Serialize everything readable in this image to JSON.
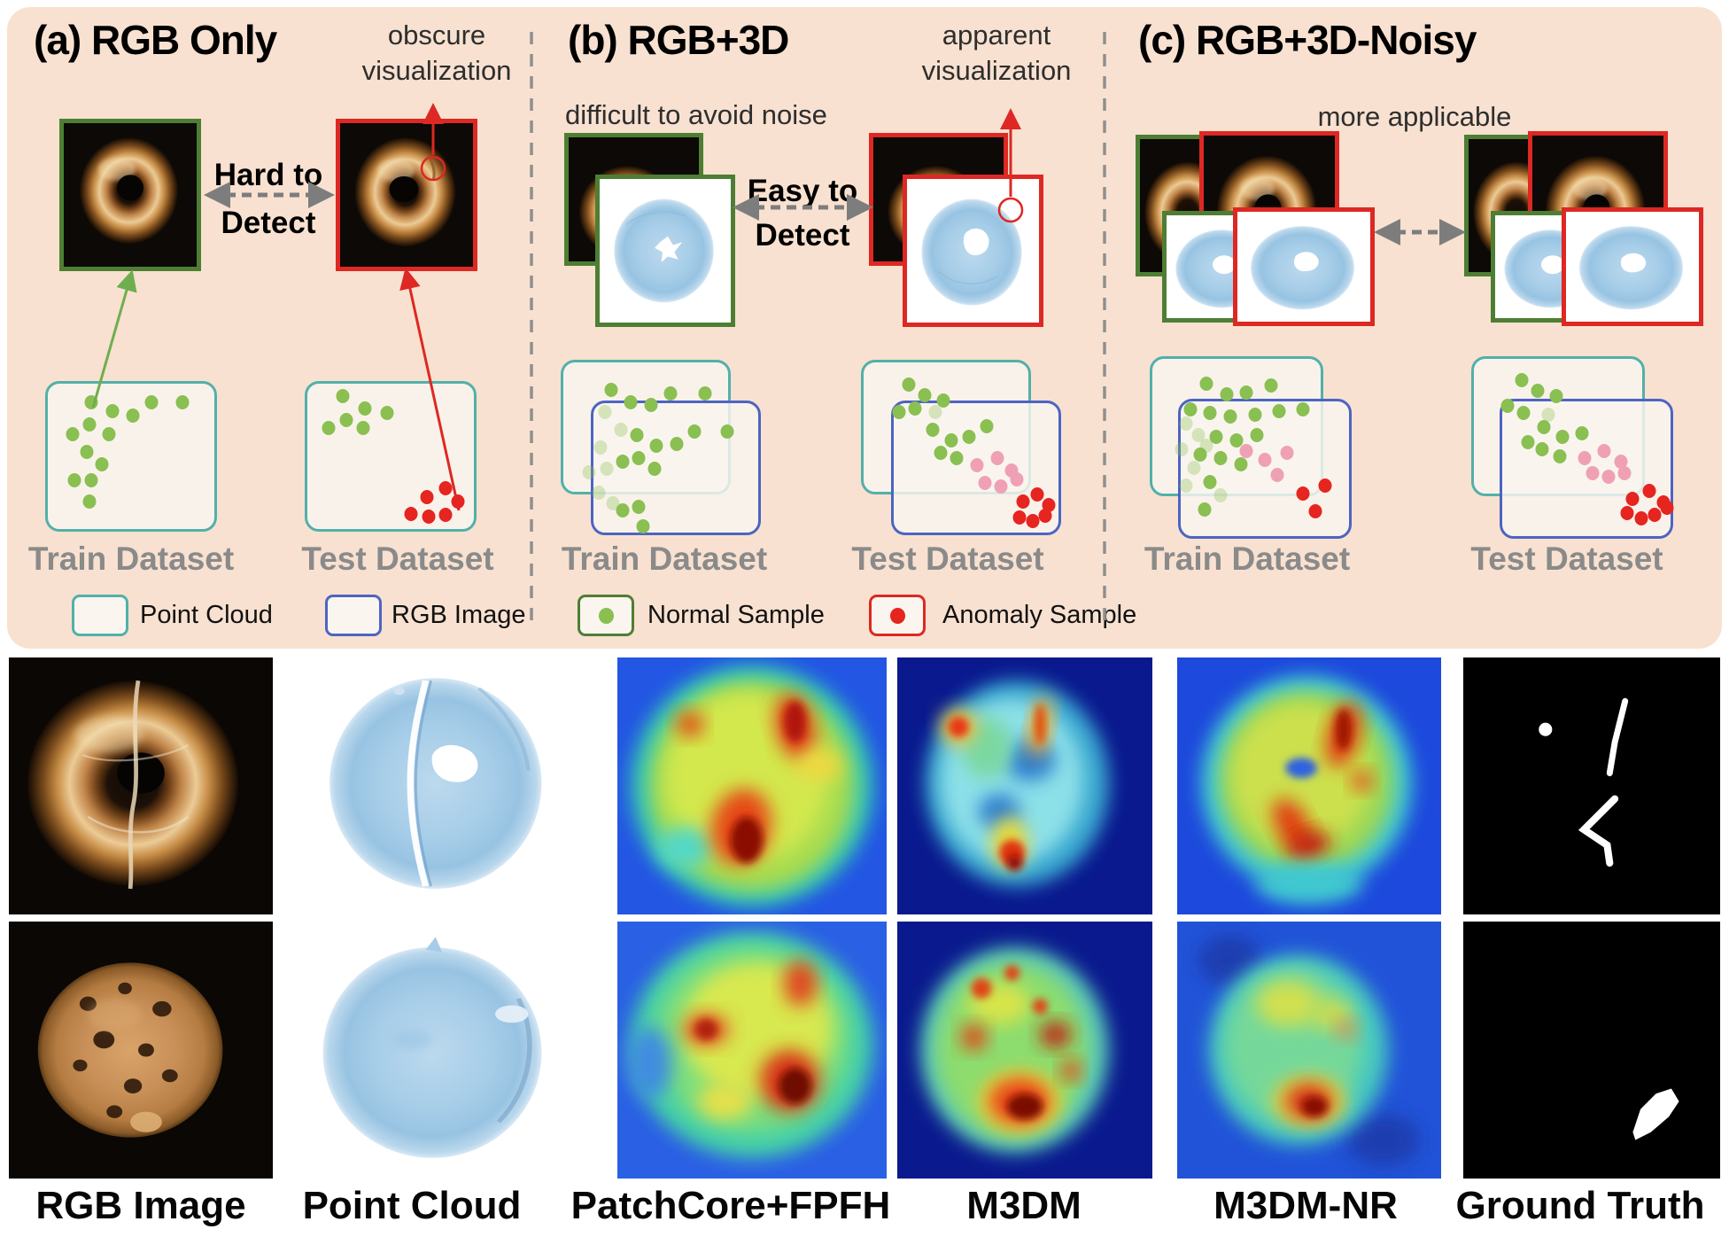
{
  "colors": {
    "peach": "#f8e1d0",
    "teal": "#52b0aa",
    "blue": "#4d64c2",
    "green": "#8abf52",
    "pink": "#f0a0b4",
    "red": "#e62420",
    "green_border": "#4e7e33",
    "red_border": "#dd2823",
    "gray_label": "#8a8a8a",
    "text_dark": "#2e2e2e",
    "arrow_gray": "#7d7d7d"
  },
  "panel_a": {
    "title": "(a) RGB Only",
    "annotation_line1": "obscure",
    "annotation_line2": "visualization",
    "relation_line1": "Hard to",
    "relation_line2": "Detect",
    "train_label": "Train Dataset",
    "test_label": "Test Dataset"
  },
  "panel_b": {
    "title": "(b) RGB+3D",
    "subtitle": "difficult to avoid noise",
    "annotation_line1": "apparent",
    "annotation_line2": "visualization",
    "relation_line1": "Easy to",
    "relation_line2": "Detect",
    "train_label": "Train Dataset",
    "test_label": "Test Dataset"
  },
  "panel_c": {
    "title": "(c) RGB+3D-Noisy",
    "subtitle": "more applicable",
    "train_label": "Train Dataset",
    "test_label": "Test Dataset"
  },
  "legend": {
    "point_cloud": "Point Cloud",
    "rgb_image": "RGB Image",
    "normal": "Normal Sample",
    "anomaly": "Anomaly Sample"
  },
  "bottom_labels": [
    "RGB Image",
    "Point Cloud",
    "PatchCore+FPFH",
    "M3DM",
    "M3DM-NR",
    "Ground Truth"
  ],
  "scatter": {
    "a_train": [
      {
        "x": 27,
        "y": 14,
        "t": "g"
      },
      {
        "x": 39,
        "y": 20,
        "t": "g"
      },
      {
        "x": 51,
        "y": 23,
        "t": "g"
      },
      {
        "x": 62,
        "y": 14,
        "t": "g"
      },
      {
        "x": 80,
        "y": 14,
        "t": "g"
      },
      {
        "x": 16,
        "y": 35,
        "t": "g"
      },
      {
        "x": 26,
        "y": 29,
        "t": "g"
      },
      {
        "x": 37,
        "y": 35,
        "t": "g"
      },
      {
        "x": 24,
        "y": 47,
        "t": "g"
      },
      {
        "x": 33,
        "y": 55,
        "t": "g"
      },
      {
        "x": 17,
        "y": 66,
        "t": "g"
      },
      {
        "x": 27,
        "y": 66,
        "t": "g"
      },
      {
        "x": 26,
        "y": 80,
        "t": "g"
      }
    ],
    "a_test": [
      {
        "x": 22,
        "y": 10,
        "t": "g"
      },
      {
        "x": 35,
        "y": 18,
        "t": "g"
      },
      {
        "x": 48,
        "y": 21,
        "t": "g"
      },
      {
        "x": 14,
        "y": 31,
        "t": "g"
      },
      {
        "x": 24,
        "y": 26,
        "t": "g"
      },
      {
        "x": 34,
        "y": 31,
        "t": "g"
      },
      {
        "x": 82,
        "y": 71,
        "t": "r"
      },
      {
        "x": 71,
        "y": 77,
        "t": "r"
      },
      {
        "x": 89,
        "y": 80,
        "t": "r"
      },
      {
        "x": 62,
        "y": 88,
        "t": "r"
      },
      {
        "x": 72,
        "y": 90,
        "t": "r"
      },
      {
        "x": 82,
        "y": 89,
        "t": "r"
      }
    ],
    "b_train": [
      {
        "x": 22,
        "y": 30,
        "t": "f"
      },
      {
        "x": 30,
        "y": 40,
        "t": "f"
      },
      {
        "x": 20,
        "y": 50,
        "t": "f"
      },
      {
        "x": 14,
        "y": 64,
        "t": "f"
      },
      {
        "x": 23,
        "y": 62,
        "t": "f"
      },
      {
        "x": 19,
        "y": 76,
        "t": "f"
      },
      {
        "x": 26,
        "y": 82,
        "t": "f"
      },
      {
        "x": 25,
        "y": 17,
        "t": "g"
      },
      {
        "x": 35,
        "y": 24,
        "t": "g"
      },
      {
        "x": 45,
        "y": 26,
        "t": "g"
      },
      {
        "x": 55,
        "y": 19,
        "t": "g"
      },
      {
        "x": 72,
        "y": 19,
        "t": "g"
      },
      {
        "x": 38,
        "y": 43,
        "t": "g"
      },
      {
        "x": 48,
        "y": 49,
        "t": "g"
      },
      {
        "x": 58,
        "y": 48,
        "t": "g"
      },
      {
        "x": 67,
        "y": 41,
        "t": "g"
      },
      {
        "x": 83,
        "y": 41,
        "t": "g"
      },
      {
        "x": 31,
        "y": 58,
        "t": "g"
      },
      {
        "x": 39,
        "y": 56,
        "t": "g"
      },
      {
        "x": 47,
        "y": 62,
        "t": "g"
      },
      {
        "x": 31,
        "y": 86,
        "t": "g"
      },
      {
        "x": 39,
        "y": 84,
        "t": "g"
      },
      {
        "x": 41,
        "y": 95,
        "t": "g"
      }
    ],
    "b_test": [
      {
        "x": 24,
        "y": 14,
        "t": "g"
      },
      {
        "x": 32,
        "y": 20,
        "t": "g"
      },
      {
        "x": 41,
        "y": 23,
        "t": "g"
      },
      {
        "x": 19,
        "y": 30,
        "t": "g"
      },
      {
        "x": 27,
        "y": 28,
        "t": "g"
      },
      {
        "x": 36,
        "y": 40,
        "t": "g"
      },
      {
        "x": 45,
        "y": 46,
        "t": "g"
      },
      {
        "x": 54,
        "y": 44,
        "t": "g"
      },
      {
        "x": 63,
        "y": 38,
        "t": "g"
      },
      {
        "x": 40,
        "y": 53,
        "t": "g"
      },
      {
        "x": 48,
        "y": 56,
        "t": "g"
      },
      {
        "x": 37,
        "y": 30,
        "t": "f"
      },
      {
        "x": 58,
        "y": 60,
        "t": "p"
      },
      {
        "x": 68,
        "y": 56,
        "t": "p"
      },
      {
        "x": 75,
        "y": 63,
        "t": "p"
      },
      {
        "x": 62,
        "y": 70,
        "t": "p"
      },
      {
        "x": 70,
        "y": 72,
        "t": "p"
      },
      {
        "x": 78,
        "y": 68,
        "t": "p"
      },
      {
        "x": 81,
        "y": 81,
        "t": "r"
      },
      {
        "x": 88,
        "y": 77,
        "t": "r"
      },
      {
        "x": 94,
        "y": 83,
        "t": "r"
      },
      {
        "x": 79,
        "y": 90,
        "t": "r"
      },
      {
        "x": 86,
        "y": 92,
        "t": "r"
      },
      {
        "x": 92,
        "y": 89,
        "t": "r"
      }
    ],
    "c_train": [
      {
        "x": 28,
        "y": 15,
        "t": "g"
      },
      {
        "x": 38,
        "y": 21,
        "t": "g"
      },
      {
        "x": 48,
        "y": 20,
        "t": "g"
      },
      {
        "x": 60,
        "y": 16,
        "t": "g"
      },
      {
        "x": 20,
        "y": 29,
        "t": "g"
      },
      {
        "x": 30,
        "y": 31,
        "t": "g"
      },
      {
        "x": 40,
        "y": 33,
        "t": "g"
      },
      {
        "x": 52,
        "y": 32,
        "t": "g"
      },
      {
        "x": 64,
        "y": 30,
        "t": "g"
      },
      {
        "x": 76,
        "y": 29,
        "t": "g"
      },
      {
        "x": 33,
        "y": 44,
        "t": "g"
      },
      {
        "x": 43,
        "y": 46,
        "t": "g"
      },
      {
        "x": 53,
        "y": 43,
        "t": "g"
      },
      {
        "x": 25,
        "y": 54,
        "t": "g"
      },
      {
        "x": 35,
        "y": 56,
        "t": "g"
      },
      {
        "x": 45,
        "y": 59,
        "t": "g"
      },
      {
        "x": 30,
        "y": 69,
        "t": "g"
      },
      {
        "x": 27,
        "y": 84,
        "t": "g"
      },
      {
        "x": 18,
        "y": 37,
        "t": "f"
      },
      {
        "x": 24,
        "y": 43,
        "t": "f"
      },
      {
        "x": 16,
        "y": 51,
        "t": "f"
      },
      {
        "x": 22,
        "y": 61,
        "t": "f"
      },
      {
        "x": 18,
        "y": 71,
        "t": "f"
      },
      {
        "x": 28,
        "y": 49,
        "t": "f"
      },
      {
        "x": 35,
        "y": 76,
        "t": "f"
      },
      {
        "x": 48,
        "y": 52,
        "t": "p"
      },
      {
        "x": 57,
        "y": 57,
        "t": "p"
      },
      {
        "x": 68,
        "y": 53,
        "t": "p"
      },
      {
        "x": 63,
        "y": 65,
        "t": "p"
      },
      {
        "x": 76,
        "y": 75,
        "t": "r"
      },
      {
        "x": 87,
        "y": 71,
        "t": "r"
      },
      {
        "x": 82,
        "y": 85,
        "t": "r"
      }
    ],
    "c_test": [
      {
        "x": 25,
        "y": 13,
        "t": "g"
      },
      {
        "x": 33,
        "y": 19,
        "t": "g"
      },
      {
        "x": 42,
        "y": 22,
        "t": "g"
      },
      {
        "x": 18,
        "y": 27,
        "t": "g"
      },
      {
        "x": 26,
        "y": 31,
        "t": "g"
      },
      {
        "x": 36,
        "y": 39,
        "t": "g"
      },
      {
        "x": 45,
        "y": 44,
        "t": "g"
      },
      {
        "x": 55,
        "y": 42,
        "t": "g"
      },
      {
        "x": 35,
        "y": 51,
        "t": "g"
      },
      {
        "x": 44,
        "y": 55,
        "t": "g"
      },
      {
        "x": 28,
        "y": 47,
        "t": "g"
      },
      {
        "x": 38,
        "y": 32,
        "t": "f"
      },
      {
        "x": 56,
        "y": 56,
        "t": "p"
      },
      {
        "x": 66,
        "y": 52,
        "t": "p"
      },
      {
        "x": 74,
        "y": 58,
        "t": "p"
      },
      {
        "x": 60,
        "y": 64,
        "t": "p"
      },
      {
        "x": 68,
        "y": 66,
        "t": "p"
      },
      {
        "x": 76,
        "y": 64,
        "t": "p"
      },
      {
        "x": 80,
        "y": 78,
        "t": "r"
      },
      {
        "x": 88,
        "y": 74,
        "t": "r"
      },
      {
        "x": 95,
        "y": 80,
        "t": "r"
      },
      {
        "x": 77,
        "y": 86,
        "t": "r"
      },
      {
        "x": 84,
        "y": 89,
        "t": "r"
      },
      {
        "x": 91,
        "y": 87,
        "t": "r"
      },
      {
        "x": 97,
        "y": 83,
        "t": "r"
      }
    ]
  }
}
